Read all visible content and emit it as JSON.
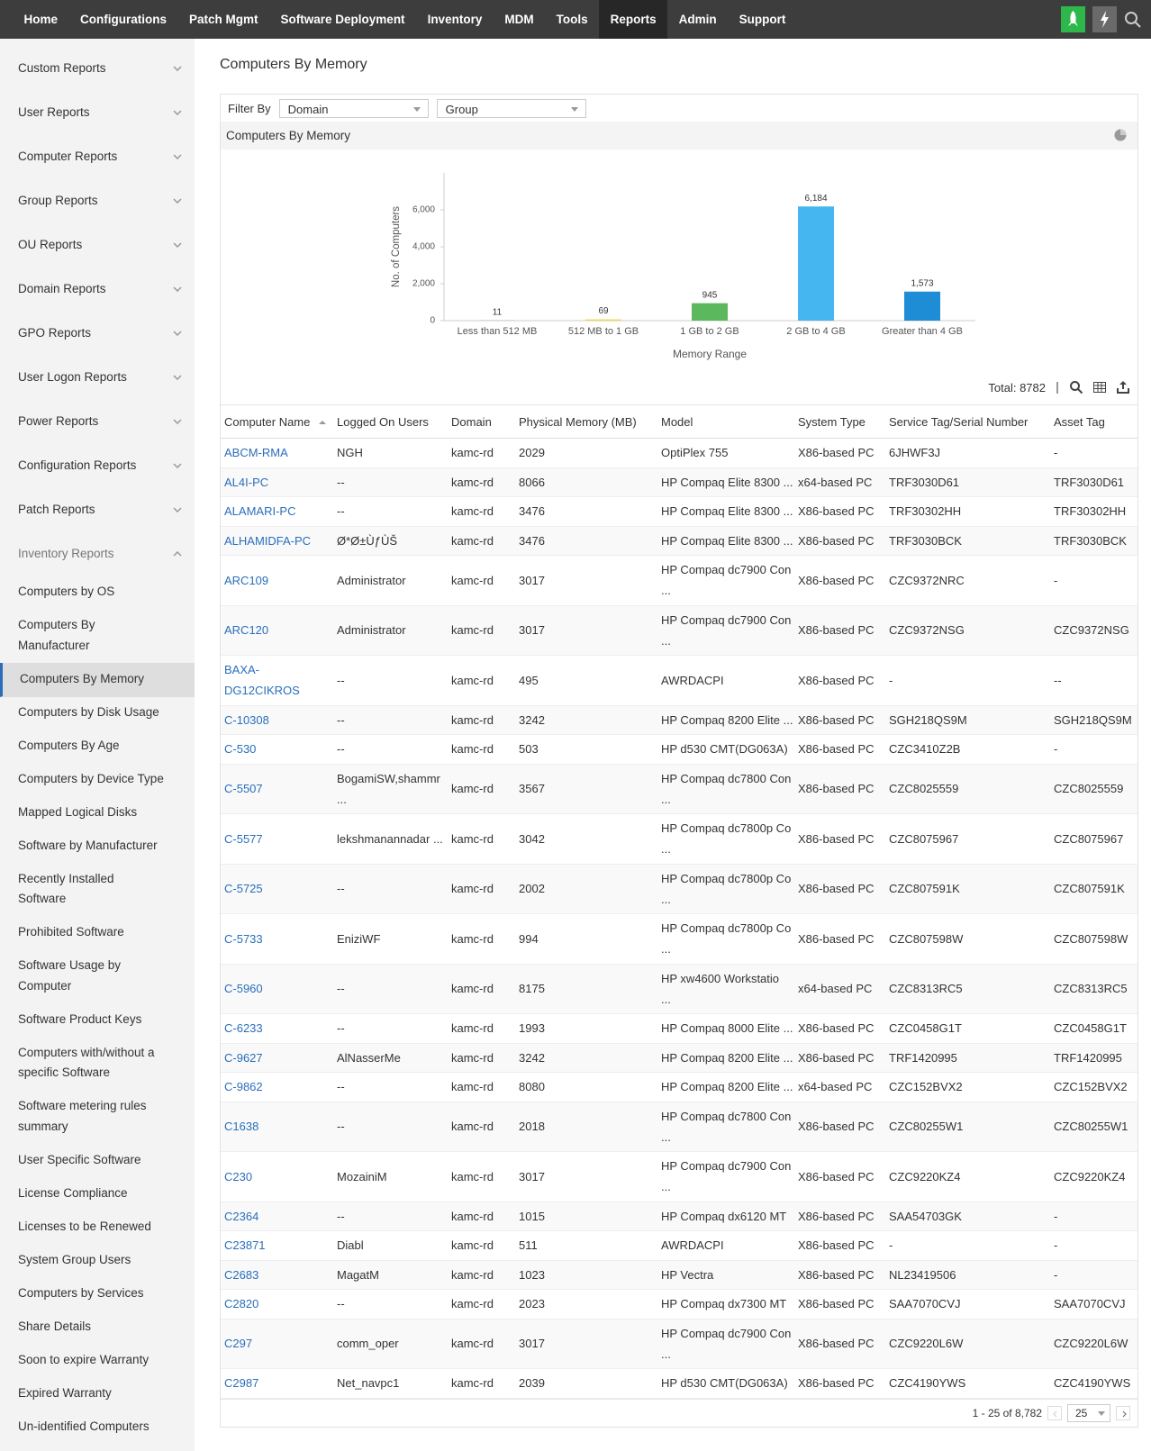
{
  "nav": {
    "items": [
      "Home",
      "Configurations",
      "Patch Mgmt",
      "Software Deployment",
      "Inventory",
      "MDM",
      "Tools",
      "Reports",
      "Admin",
      "Support"
    ],
    "active": 7
  },
  "sidebar": {
    "sections": [
      "Custom Reports",
      "User Reports",
      "Computer Reports",
      "Group Reports",
      "OU Reports",
      "Domain Reports",
      "GPO Reports",
      "User Logon Reports",
      "Power Reports",
      "Configuration Reports",
      "Patch Reports"
    ],
    "expanded_section": "Inventory Reports",
    "items": [
      "Computers by OS",
      "Computers By\nManufacturer",
      "Computers By Memory",
      "Computers by Disk Usage",
      "Computers By Age",
      "Computers by Device Type",
      "Mapped Logical Disks",
      "Software by Manufacturer",
      "Recently Installed\nSoftware",
      "Prohibited Software",
      "Software Usage by\nComputer",
      "Software Product Keys",
      "Computers with/without a\nspecific Software",
      "Software metering rules\nsummary",
      "User Specific Software",
      "License Compliance",
      "Licenses to be Renewed",
      "System Group Users",
      "Computers by Services",
      "Share Details",
      "Soon to expire Warranty",
      "Expired Warranty",
      "Un-identified Computers"
    ],
    "active_item": 2
  },
  "page_title": "Computers By Memory",
  "filter": {
    "label": "Filter By",
    "domain": "Domain",
    "group": "Group"
  },
  "chart_panel_title": "Computers By Memory",
  "chart_data": {
    "type": "bar",
    "x_label": "Memory Range",
    "y_label": "No. of Computers",
    "categories": [
      "Less than 512 MB",
      "512 MB to 1 GB",
      "1 GB to 2 GB",
      "2 GB to 4 GB",
      "Greater than 4 GB"
    ],
    "values": [
      11,
      69,
      945,
      6184,
      1573
    ],
    "value_labels": [
      "11",
      "69",
      "945",
      "6,184",
      "1,573"
    ],
    "colors": [
      "#9e9e9e",
      "#f2d64b",
      "#5cb85c",
      "#45b6ef",
      "#1f8dd6"
    ],
    "ylim": [
      0,
      8000
    ],
    "yticks": [
      0,
      {
        "value": 2000,
        "label": "2,000"
      },
      {
        "value": 4000,
        "label": "4,000"
      },
      {
        "value": 6000,
        "label": "6,000"
      }
    ],
    "grid": false
  },
  "total": "Total: 8782",
  "table": {
    "columns": [
      "Computer Name",
      "Logged On Users",
      "Domain",
      "Physical Memory (MB)",
      "Model",
      "System Type",
      "Service Tag/Serial Number",
      "Asset Tag"
    ],
    "sort_column": 0,
    "rows": [
      [
        "ABCM-RMA",
        "NGH",
        "kamc-rd",
        "2029",
        "OptiPlex 755",
        "X86-based PC",
        "6JHWF3J",
        "-"
      ],
      [
        "AL4I-PC",
        "--",
        "kamc-rd",
        "8066",
        "HP Compaq Elite 8300 ...",
        "x64-based PC",
        "TRF3030D61",
        "TRF3030D61"
      ],
      [
        "ALAMARI-PC",
        "--",
        "kamc-rd",
        "3476",
        "HP Compaq Elite 8300 ...",
        "X86-based PC",
        "TRF30302HH",
        "TRF30302HH"
      ],
      [
        "ALHAMIDFA-PC",
        "Ø*Ø±ÙƒÙŠ",
        "kamc-rd",
        "3476",
        "HP Compaq Elite 8300 ...",
        "X86-based PC",
        "TRF3030BCK",
        "TRF3030BCK"
      ],
      [
        "ARC109",
        "Administrator",
        "kamc-rd",
        "3017",
        "HP Compaq dc7900 Con\n...",
        "X86-based PC",
        "CZC9372NRC",
        "-"
      ],
      [
        "ARC120",
        "Administrator",
        "kamc-rd",
        "3017",
        "HP Compaq dc7900 Con\n...",
        "X86-based PC",
        "CZC9372NSG",
        "CZC9372NSG"
      ],
      [
        "BAXA-\nDG12CIKROS",
        "--",
        "kamc-rd",
        "495",
        "AWRDACPI",
        "X86-based PC",
        "-",
        "--"
      ],
      [
        "C-10308",
        "--",
        "kamc-rd",
        "3242",
        "HP Compaq 8200 Elite ...",
        "X86-based PC",
        "SGH218QS9M",
        "SGH218QS9M"
      ],
      [
        "C-530",
        "--",
        "kamc-rd",
        "503",
        "HP d530 CMT(DG063A)",
        "X86-based PC",
        "CZC3410Z2B",
        "-"
      ],
      [
        "C-5507",
        "BogamiSW,shammr\n...",
        "kamc-rd",
        "3567",
        "HP Compaq dc7800 Con\n...",
        "X86-based PC",
        "CZC8025559",
        "CZC8025559"
      ],
      [
        "C-5577",
        "lekshmanannadar ...",
        "kamc-rd",
        "3042",
        "HP Compaq dc7800p Co\n...",
        "X86-based PC",
        "CZC8075967",
        "CZC8075967"
      ],
      [
        "C-5725",
        "--",
        "kamc-rd",
        "2002",
        "HP Compaq dc7800p Co\n...",
        "X86-based PC",
        "CZC807591K",
        "CZC807591K"
      ],
      [
        "C-5733",
        "EniziWF",
        "kamc-rd",
        "994",
        "HP Compaq dc7800p Co\n...",
        "X86-based PC",
        "CZC807598W",
        "CZC807598W"
      ],
      [
        "C-5960",
        "--",
        "kamc-rd",
        "8175",
        "HP xw4600 Workstatio\n...",
        "x64-based PC",
        "CZC8313RC5",
        "CZC8313RC5"
      ],
      [
        "C-6233",
        "--",
        "kamc-rd",
        "1993",
        "HP Compaq 8000 Elite ...",
        "X86-based PC",
        "CZC0458G1T",
        "CZC0458G1T"
      ],
      [
        "C-9627",
        "AlNasserMe",
        "kamc-rd",
        "3242",
        "HP Compaq 8200 Elite ...",
        "X86-based PC",
        "TRF1420995",
        "TRF1420995"
      ],
      [
        "C-9862",
        "--",
        "kamc-rd",
        "8080",
        "HP Compaq 8200 Elite ...",
        "x64-based PC",
        "CZC152BVX2",
        "CZC152BVX2"
      ],
      [
        "C1638",
        "--",
        "kamc-rd",
        "2018",
        "HP Compaq dc7800 Con\n...",
        "X86-based PC",
        "CZC80255W1",
        "CZC80255W1"
      ],
      [
        "C230",
        "MozainiM",
        "kamc-rd",
        "3017",
        "HP Compaq dc7900 Con\n...",
        "X86-based PC",
        "CZC9220KZ4",
        "CZC9220KZ4"
      ],
      [
        "C2364",
        "--",
        "kamc-rd",
        "1015",
        "HP Compaq dx6120 MT",
        "X86-based PC",
        "SAA54703GK",
        "-"
      ],
      [
        "C23871",
        "Diabl",
        "kamc-rd",
        "511",
        "AWRDACPI",
        "X86-based PC",
        "-",
        "-"
      ],
      [
        "C2683",
        "MagatM",
        "kamc-rd",
        "1023",
        "HP Vectra",
        "X86-based PC",
        "NL23419506",
        "-"
      ],
      [
        "C2820",
        "--",
        "kamc-rd",
        "2023",
        "HP Compaq dx7300 MT",
        "X86-based PC",
        "SAA7070CVJ",
        "SAA7070CVJ"
      ],
      [
        "C297",
        "comm_oper",
        "kamc-rd",
        "3017",
        "HP Compaq dc7900 Con\n...",
        "X86-based PC",
        "CZC9220L6W",
        "CZC9220L6W"
      ],
      [
        "C2987",
        "Net_navpc1",
        "kamc-rd",
        "2039",
        "HP d530 CMT(DG063A)",
        "X86-based PC",
        "CZC4190YWS",
        "CZC4190YWS"
      ]
    ]
  },
  "pagination": {
    "range": "1 - 25 of 8,782",
    "page_size": "25"
  }
}
